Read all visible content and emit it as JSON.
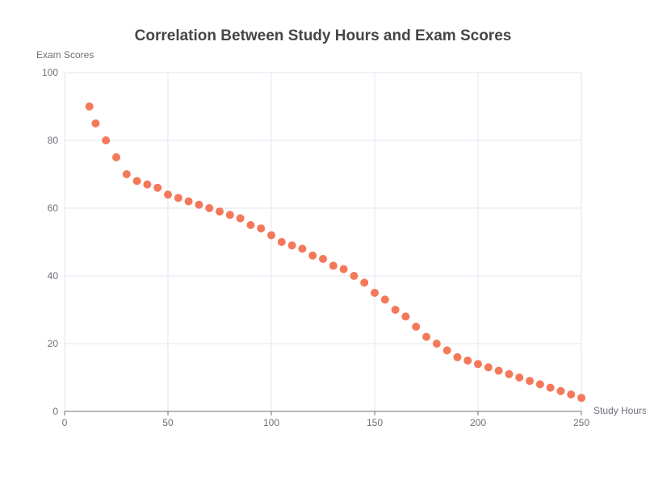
{
  "chart_data": {
    "type": "scatter",
    "title": "Correlation Between Study Hours and Exam Scores",
    "xlabel": "Study Hours",
    "ylabel": "Exam Scores",
    "xlim": [
      0,
      250
    ],
    "ylim": [
      0,
      100
    ],
    "x_ticks": [
      "0",
      "50",
      "100",
      "150",
      "200",
      "250"
    ],
    "y_ticks": [
      "0",
      "20",
      "40",
      "60",
      "80",
      "100"
    ],
    "grid": true,
    "series_color": "#f4785a",
    "points": [
      [
        12,
        90
      ],
      [
        15,
        85
      ],
      [
        20,
        80
      ],
      [
        25,
        75
      ],
      [
        30,
        70
      ],
      [
        35,
        68
      ],
      [
        40,
        67
      ],
      [
        45,
        66
      ],
      [
        50,
        64
      ],
      [
        55,
        63
      ],
      [
        60,
        62
      ],
      [
        65,
        61
      ],
      [
        70,
        60
      ],
      [
        75,
        59
      ],
      [
        80,
        58
      ],
      [
        85,
        57
      ],
      [
        90,
        55
      ],
      [
        95,
        54
      ],
      [
        100,
        52
      ],
      [
        105,
        50
      ],
      [
        110,
        49
      ],
      [
        115,
        48
      ],
      [
        120,
        46
      ],
      [
        125,
        45
      ],
      [
        130,
        43
      ],
      [
        135,
        42
      ],
      [
        140,
        40
      ],
      [
        145,
        38
      ],
      [
        150,
        35
      ],
      [
        155,
        33
      ],
      [
        160,
        30
      ],
      [
        165,
        28
      ],
      [
        170,
        25
      ],
      [
        175,
        22
      ],
      [
        180,
        20
      ],
      [
        185,
        18
      ],
      [
        190,
        16
      ],
      [
        195,
        15
      ],
      [
        200,
        14
      ],
      [
        205,
        13
      ],
      [
        210,
        12
      ],
      [
        215,
        11
      ],
      [
        220,
        10
      ],
      [
        225,
        9
      ],
      [
        230,
        8
      ],
      [
        235,
        7
      ],
      [
        240,
        6
      ],
      [
        245,
        5
      ],
      [
        250,
        4
      ]
    ]
  }
}
